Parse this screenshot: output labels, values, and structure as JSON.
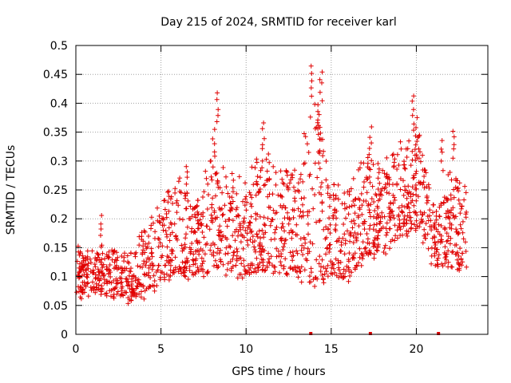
{
  "chart_data": {
    "type": "scatter",
    "title": "Day 215 of 2024, SRMTID for receiver karl",
    "xlabel": "GPS time / hours",
    "ylabel": "SRMTID / TECUs",
    "xlim": [
      0,
      24.2
    ],
    "ylim": [
      0,
      0.5
    ],
    "x_ticks": [
      0,
      5,
      10,
      15,
      20
    ],
    "x_tick_labels": [
      "0",
      "5",
      "10",
      "15",
      "20"
    ],
    "y_ticks": [
      0,
      0.05,
      0.1,
      0.15,
      0.2,
      0.25,
      0.3,
      0.35,
      0.4,
      0.45,
      0.5
    ],
    "y_tick_labels": [
      "0",
      "0.05",
      "0.1",
      "0.15",
      "0.2",
      "0.25",
      "0.3",
      "0.35",
      "0.4",
      "0.45",
      "0.5"
    ],
    "grid": true,
    "marker": "+",
    "color": "#e00000",
    "zero_markers_x": [
      13.8,
      17.3,
      21.3
    ],
    "envelope": {
      "hours": [
        0,
        1,
        2,
        3,
        4,
        5,
        6,
        7,
        8,
        9,
        10,
        11,
        12,
        13,
        14,
        15,
        16,
        17,
        18,
        19,
        20,
        21,
        22,
        23
      ],
      "low": [
        0.07,
        0.07,
        0.07,
        0.06,
        0.07,
        0.09,
        0.1,
        0.1,
        0.11,
        0.1,
        0.1,
        0.11,
        0.11,
        0.1,
        0.09,
        0.1,
        0.1,
        0.13,
        0.14,
        0.16,
        0.18,
        0.12,
        0.11,
        0.12
      ],
      "high": [
        0.15,
        0.14,
        0.15,
        0.13,
        0.18,
        0.24,
        0.27,
        0.22,
        0.33,
        0.26,
        0.27,
        0.32,
        0.29,
        0.28,
        0.43,
        0.27,
        0.25,
        0.32,
        0.29,
        0.33,
        0.38,
        0.22,
        0.29,
        0.27
      ]
    },
    "peaks": [
      {
        "x": 8.3,
        "y": 0.42
      },
      {
        "x": 8.1,
        "y": 0.36
      },
      {
        "x": 11.0,
        "y": 0.37
      },
      {
        "x": 13.8,
        "y": 0.47
      },
      {
        "x": 14.4,
        "y": 0.46
      },
      {
        "x": 14.2,
        "y": 0.4
      },
      {
        "x": 17.3,
        "y": 0.36
      },
      {
        "x": 19.8,
        "y": 0.42
      },
      {
        "x": 20.0,
        "y": 0.35
      },
      {
        "x": 21.5,
        "y": 0.34
      },
      {
        "x": 22.2,
        "y": 0.36
      },
      {
        "x": 1.5,
        "y": 0.21
      },
      {
        "x": 6.5,
        "y": 0.3
      },
      {
        "x": 9.2,
        "y": 0.28
      }
    ]
  }
}
